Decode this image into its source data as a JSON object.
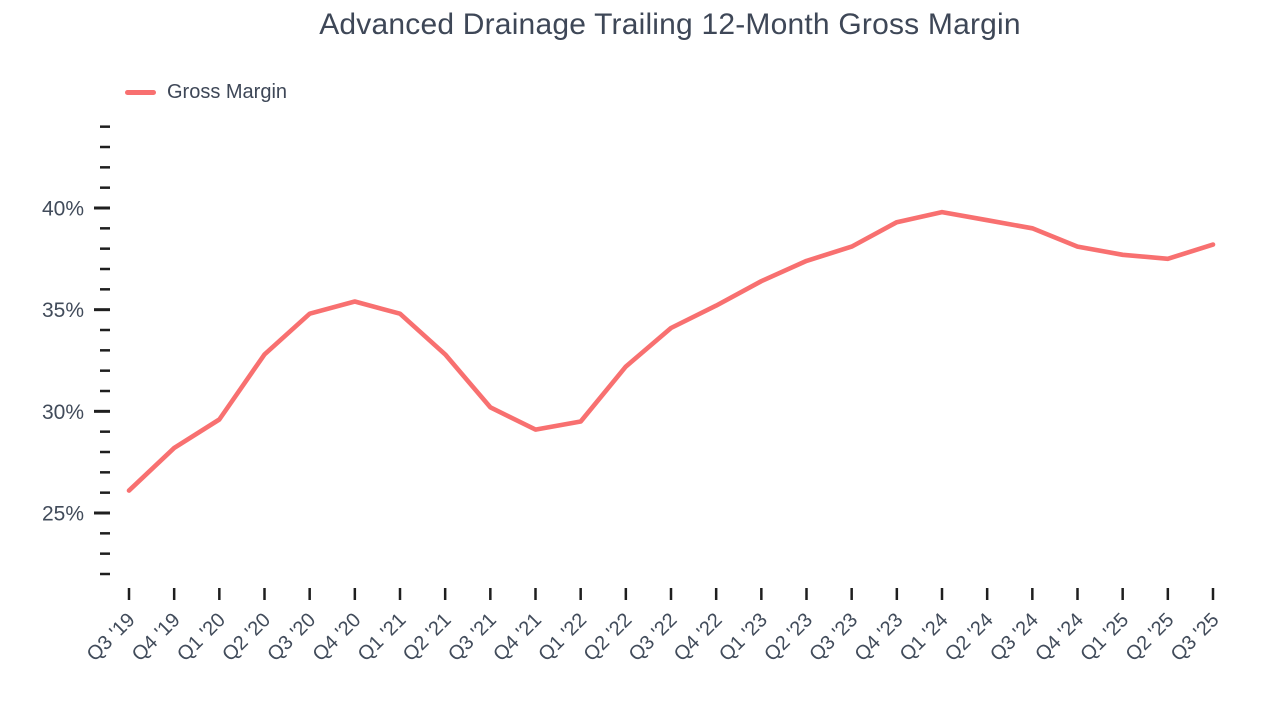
{
  "chart_data": {
    "type": "line",
    "title": "Advanced Drainage Trailing 12-Month Gross Margin",
    "xlabel": "",
    "ylabel": "",
    "categories": [
      "Q3 '19",
      "Q4 '19",
      "Q1 '20",
      "Q2 '20",
      "Q3 '20",
      "Q4 '20",
      "Q1 '21",
      "Q2 '21",
      "Q3 '21",
      "Q4 '21",
      "Q1 '22",
      "Q2 '22",
      "Q3 '22",
      "Q4 '22",
      "Q1 '23",
      "Q2 '23",
      "Q3 '23",
      "Q4 '23",
      "Q1 '24",
      "Q2 '24",
      "Q3 '24",
      "Q4 '24",
      "Q1 '25",
      "Q2 '25",
      "Q3 '25"
    ],
    "series": [
      {
        "name": "Gross Margin",
        "color": "#f87070",
        "unit": "%",
        "values": [
          26.1,
          28.2,
          29.6,
          32.8,
          34.8,
          35.4,
          34.8,
          32.8,
          30.2,
          29.1,
          29.5,
          32.2,
          34.1,
          35.2,
          36.4,
          37.4,
          38.1,
          39.3,
          39.8,
          39.4,
          39.0,
          38.1,
          37.7,
          37.5,
          38.2
        ]
      }
    ],
    "y_axis": {
      "min": 22,
      "max": 44,
      "major_ticks": [
        40,
        35,
        30,
        25
      ],
      "major_tick_labels": [
        "40%",
        "35%",
        "30%",
        "25%"
      ],
      "minor_tick_step": 1,
      "label_suffix": "%"
    },
    "ylim": [
      22,
      44
    ],
    "grid": false,
    "legend_position": "top-left",
    "background_color": "#ffffff",
    "text_color": "#3e4757",
    "tick_color": "#1f1f1f"
  }
}
